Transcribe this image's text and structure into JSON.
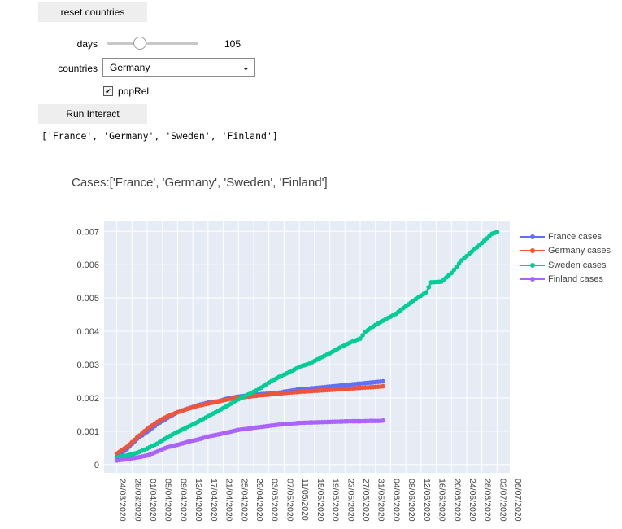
{
  "controls": {
    "reset_label": "reset countries",
    "days_label": "days",
    "days_value": "105",
    "days_level": 0.33,
    "countries_label": "countries",
    "countries_selected": "Germany",
    "poprel_label": "popRel",
    "poprel_checked": true,
    "run_label": "Run Interact",
    "output_text": "['France', 'Germany', 'Sweden', 'Finland']"
  },
  "chart_data": {
    "type": "line",
    "title": "Cases:['France', 'Germany', 'Sweden', 'Finland']",
    "xlabel": "",
    "ylabel": "",
    "ylim": [
      -0.00025,
      0.0073
    ],
    "grid": true,
    "legend_position": "top-right",
    "y_ticks": [
      "0",
      "0.001",
      "0.002",
      "0.003",
      "0.004",
      "0.005",
      "0.006",
      "0.007"
    ],
    "x_tick_labels": [
      "24/03/2020",
      "28/03/2020",
      "01/04/2020",
      "05/04/2020",
      "09/04/2020",
      "13/04/2020",
      "17/04/2020",
      "21/04/2020",
      "25/04/2020",
      "29/04/2020",
      "03/05/2020",
      "07/05/2020",
      "11/05/2020",
      "15/05/2020",
      "19/05/2020",
      "23/05/2020",
      "27/05/2020",
      "31/05/2020",
      "04/06/2020",
      "08/06/2020",
      "12/06/2020",
      "16/06/2020",
      "20/06/2020",
      "24/06/2020",
      "28/06/2020",
      "02/07/2020",
      "06/07/2020"
    ],
    "series": [
      {
        "name": "France cases",
        "color": "#636efa",
        "points": [
          [
            0,
            0.00025
          ],
          [
            4,
            0.00046
          ],
          [
            8,
            0.00077
          ],
          [
            12,
            0.00098
          ],
          [
            16,
            0.00121
          ],
          [
            20,
            0.0014
          ],
          [
            24,
            0.00157
          ],
          [
            28,
            0.00168
          ],
          [
            32,
            0.00178
          ],
          [
            36,
            0.00186
          ],
          [
            40,
            0.0019
          ],
          [
            44,
            0.00199
          ],
          [
            48,
            0.00204
          ],
          [
            52,
            0.00208
          ],
          [
            56,
            0.00211
          ],
          [
            60,
            0.00213
          ],
          [
            64,
            0.00216
          ],
          [
            68,
            0.00221
          ],
          [
            72,
            0.00226
          ],
          [
            76,
            0.00228
          ],
          [
            80,
            0.00231
          ],
          [
            84,
            0.00234
          ],
          [
            88,
            0.00237
          ],
          [
            92,
            0.0024
          ],
          [
            96,
            0.00243
          ],
          [
            100,
            0.00246
          ],
          [
            104,
            0.00249
          ],
          [
            105,
            0.0025
          ]
        ]
      },
      {
        "name": "Germany cases",
        "color": "#ef553b",
        "points": [
          [
            0,
            0.00033
          ],
          [
            4,
            0.00053
          ],
          [
            8,
            0.00081
          ],
          [
            12,
            0.00107
          ],
          [
            16,
            0.00128
          ],
          [
            20,
            0.00145
          ],
          [
            24,
            0.00157
          ],
          [
            28,
            0.00167
          ],
          [
            32,
            0.00176
          ],
          [
            36,
            0.00183
          ],
          [
            40,
            0.00189
          ],
          [
            44,
            0.00196
          ],
          [
            48,
            0.002
          ],
          [
            52,
            0.00204
          ],
          [
            56,
            0.00207
          ],
          [
            60,
            0.0021
          ],
          [
            64,
            0.00213
          ],
          [
            68,
            0.00216
          ],
          [
            72,
            0.00218
          ],
          [
            76,
            0.0022
          ],
          [
            80,
            0.00222
          ],
          [
            84,
            0.00224
          ],
          [
            88,
            0.00226
          ],
          [
            92,
            0.00228
          ],
          [
            96,
            0.0023
          ],
          [
            100,
            0.00232
          ],
          [
            104,
            0.00234
          ],
          [
            105,
            0.00235
          ]
        ]
      },
      {
        "name": "Sweden cases",
        "color": "#00cc96",
        "points": [
          [
            0,
            0.00022
          ],
          [
            4,
            0.00027
          ],
          [
            8,
            0.00035
          ],
          [
            12,
            0.00048
          ],
          [
            16,
            0.00063
          ],
          [
            20,
            0.00082
          ],
          [
            24,
            0.00098
          ],
          [
            28,
            0.00113
          ],
          [
            32,
            0.00128
          ],
          [
            36,
            0.00145
          ],
          [
            40,
            0.00161
          ],
          [
            44,
            0.00178
          ],
          [
            48,
            0.00196
          ],
          [
            52,
            0.00211
          ],
          [
            56,
            0.00226
          ],
          [
            60,
            0.00246
          ],
          [
            64,
            0.00263
          ],
          [
            68,
            0.00277
          ],
          [
            72,
            0.00293
          ],
          [
            76,
            0.00303
          ],
          [
            80,
            0.00319
          ],
          [
            84,
            0.00334
          ],
          [
            88,
            0.00351
          ],
          [
            92,
            0.00366
          ],
          [
            96,
            0.00378
          ],
          [
            98,
            0.00398
          ],
          [
            102,
            0.00419
          ],
          [
            106,
            0.00436
          ],
          [
            110,
            0.00452
          ],
          [
            114,
            0.00475
          ],
          [
            118,
            0.00497
          ],
          [
            122,
            0.00517
          ],
          [
            124,
            0.00547
          ],
          [
            128,
            0.00549
          ],
          [
            132,
            0.00575
          ],
          [
            136,
            0.00613
          ],
          [
            140,
            0.00639
          ],
          [
            144,
            0.00665
          ],
          [
            148,
            0.00693
          ],
          [
            150,
            0.00698
          ]
        ]
      },
      {
        "name": "Finland cases",
        "color": "#ab63fa",
        "points": [
          [
            0,
            0.00012
          ],
          [
            4,
            0.00016
          ],
          [
            8,
            0.00021
          ],
          [
            12,
            0.00027
          ],
          [
            16,
            0.00039
          ],
          [
            20,
            0.00052
          ],
          [
            24,
            0.00059
          ],
          [
            28,
            0.00068
          ],
          [
            32,
            0.00075
          ],
          [
            36,
            0.00084
          ],
          [
            40,
            0.0009
          ],
          [
            44,
            0.00097
          ],
          [
            48,
            0.00104
          ],
          [
            52,
            0.00108
          ],
          [
            56,
            0.00112
          ],
          [
            60,
            0.00116
          ],
          [
            64,
            0.0012
          ],
          [
            68,
            0.00122
          ],
          [
            72,
            0.00125
          ],
          [
            76,
            0.00126
          ],
          [
            80,
            0.00127
          ],
          [
            84,
            0.00128
          ],
          [
            88,
            0.00129
          ],
          [
            92,
            0.0013
          ],
          [
            96,
            0.0013
          ],
          [
            100,
            0.00131
          ],
          [
            104,
            0.00131
          ],
          [
            105,
            0.00132
          ]
        ]
      }
    ]
  }
}
